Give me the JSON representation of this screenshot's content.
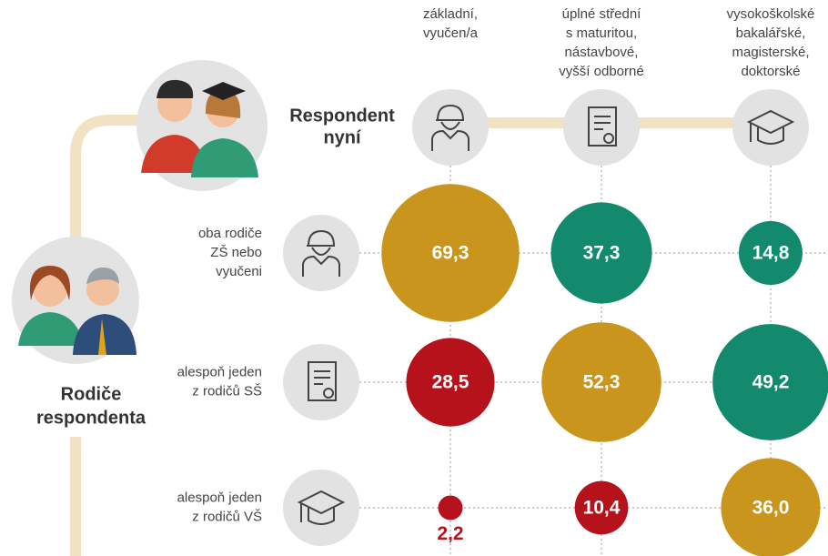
{
  "chart_data": {
    "type": "bubble",
    "columns": [
      [
        "základní,",
        "vyučen/a"
      ],
      [
        "úplné střední",
        "s maturitou,",
        "nástavbové,",
        "vyšší odborné"
      ],
      [
        "vysokoškolské",
        "bakalářské,",
        "magisterské,",
        "doktorské"
      ]
    ],
    "column_title": [
      "Respondent",
      "nyní"
    ],
    "row_title": [
      "Rodiče",
      "respondenta"
    ],
    "rows": [
      [
        "oba rodiče",
        "ZŠ nebo",
        "vyučeni"
      ],
      [
        "alespoň jeden",
        "z rodičů SŠ"
      ],
      [
        "alespoň jeden",
        "z rodičů VŠ"
      ]
    ],
    "series": [
      {
        "values": [
          69.3,
          37.3,
          14.8
        ],
        "value_labels": [
          "69,3",
          "37,3",
          "14,8"
        ],
        "colors": [
          "#c9951c",
          "#138a6d",
          "#138a6d"
        ]
      },
      {
        "values": [
          28.5,
          52.3,
          49.2
        ],
        "value_labels": [
          "28,5",
          "52,3",
          "49,2"
        ],
        "colors": [
          "#b5121b",
          "#c9951c",
          "#138a6d"
        ]
      },
      {
        "values": [
          2.2,
          10.4,
          36.0
        ],
        "value_labels": [
          "2,2",
          "10,4",
          "36,0"
        ],
        "colors": [
          "#b5121b",
          "#b5121b",
          "#c9951c"
        ]
      }
    ]
  }
}
